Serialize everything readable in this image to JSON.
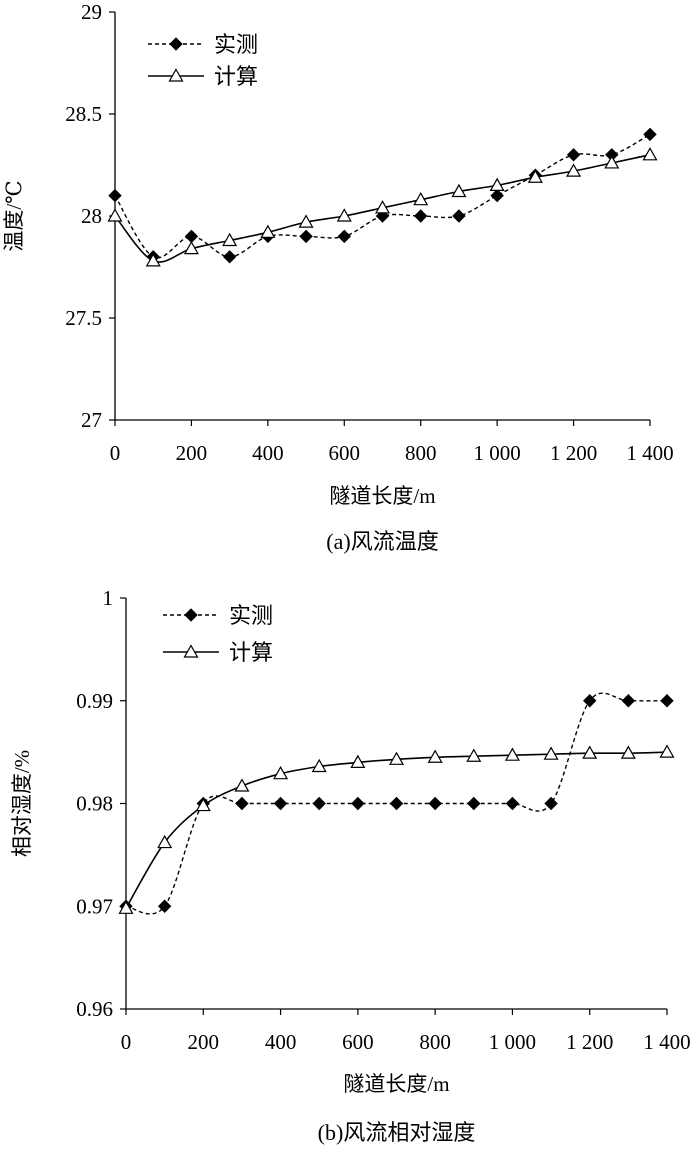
{
  "chart_data": [
    {
      "type": "line",
      "caption": "(a)风流温度",
      "xlabel": "隧道长度/m",
      "ylabel": "温度/℃",
      "xlim": [
        0,
        1400
      ],
      "ylim": [
        27,
        29
      ],
      "x_ticks": [
        "0",
        "200",
        "400",
        "600",
        "800",
        "1 000",
        "1 200",
        "1 400"
      ],
      "y_ticks": [
        "27",
        "27.5",
        "28",
        "28.5",
        "29"
      ],
      "grid": false,
      "legend_position": "top-left",
      "series": [
        {
          "name": "实测",
          "style": "dashed",
          "marker": "diamond",
          "x": [
            0,
            100,
            200,
            300,
            400,
            500,
            600,
            700,
            800,
            900,
            1000,
            1100,
            1200,
            1300,
            1400
          ],
          "values": [
            28.1,
            27.8,
            27.9,
            27.8,
            27.9,
            27.9,
            27.9,
            28.0,
            28.0,
            28.0,
            28.1,
            28.2,
            28.3,
            28.3,
            28.4
          ]
        },
        {
          "name": "计算",
          "style": "solid",
          "marker": "triangle",
          "x": [
            0,
            100,
            200,
            300,
            400,
            500,
            600,
            700,
            800,
            900,
            1000,
            1100,
            1200,
            1300,
            1400
          ],
          "values": [
            28.0,
            27.78,
            27.84,
            27.88,
            27.92,
            27.97,
            28.0,
            28.04,
            28.08,
            28.12,
            28.15,
            28.19,
            28.22,
            28.26,
            28.3
          ]
        }
      ]
    },
    {
      "type": "line",
      "caption": "(b)风流相对湿度",
      "xlabel": "隧道长度/m",
      "ylabel": "相对湿度/%",
      "xlim": [
        0,
        1400
      ],
      "ylim": [
        0.96,
        1
      ],
      "x_ticks": [
        "0",
        "200",
        "400",
        "600",
        "800",
        "1 000",
        "1 200",
        "1 400"
      ],
      "y_ticks": [
        "0.96",
        "0.97",
        "0.98",
        "0.99",
        "1"
      ],
      "grid": false,
      "legend_position": "top-left",
      "series": [
        {
          "name": "实测",
          "style": "dashed",
          "marker": "diamond",
          "x": [
            0,
            100,
            200,
            300,
            400,
            500,
            600,
            700,
            800,
            900,
            1000,
            1100,
            1200,
            1300,
            1400
          ],
          "values": [
            0.97,
            0.97,
            0.98,
            0.98,
            0.98,
            0.98,
            0.98,
            0.98,
            0.98,
            0.98,
            0.98,
            0.98,
            0.99,
            0.99,
            0.99
          ]
        },
        {
          "name": "计算",
          "style": "solid",
          "marker": "triangle",
          "x": [
            0,
            100,
            200,
            300,
            400,
            500,
            600,
            700,
            800,
            900,
            1000,
            1100,
            1200,
            1300,
            1400
          ],
          "values": [
            0.9698,
            0.9762,
            0.9798,
            0.9817,
            0.9829,
            0.9836,
            0.984,
            0.9843,
            0.9845,
            0.9846,
            0.9847,
            0.9848,
            0.9849,
            0.9849,
            0.985
          ]
        }
      ]
    }
  ]
}
